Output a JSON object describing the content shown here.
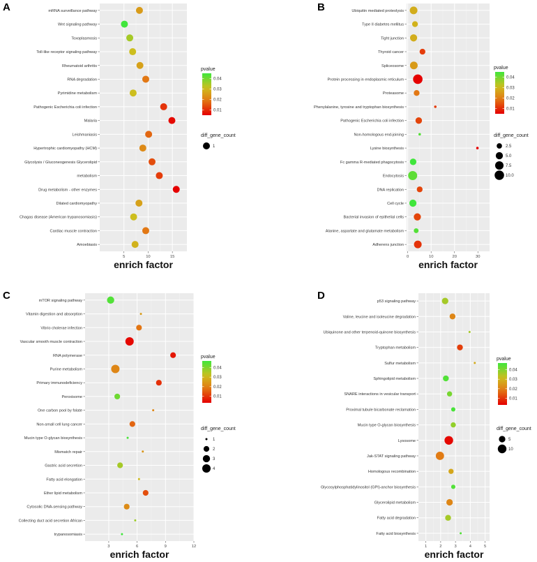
{
  "chart_data": [
    {
      "type": "scatter",
      "panel": "A",
      "xlabel": "enrich factor",
      "xlim": [
        0,
        18
      ],
      "xticks": [
        5,
        10,
        15
      ],
      "x_tick_labels": [
        "5",
        "10",
        "15"
      ],
      "color_legend": {
        "title": "pvalue",
        "ticks": [
          0.04,
          0.03,
          0.02,
          0.01
        ],
        "tick_labels": [
          "0.04",
          "0.03",
          "0.02",
          "0.01"
        ],
        "range": [
          0.005,
          0.045
        ]
      },
      "size_legend": {
        "title": "diff_gene_count",
        "values": [
          1
        ],
        "labels": [
          "1"
        ]
      },
      "points": [
        {
          "term": "mRNA surveillance pathway",
          "x": 8.2,
          "pvalue": 0.025,
          "count": 1
        },
        {
          "term": "Wnt signaling pathway",
          "x": 5.1,
          "pvalue": 0.045,
          "count": 1
        },
        {
          "term": "Toxoplasmosis",
          "x": 6.2,
          "pvalue": 0.035,
          "count": 1
        },
        {
          "term": "Toll-like receptor signaling pathway",
          "x": 6.8,
          "pvalue": 0.031,
          "count": 1
        },
        {
          "term": "Rheumatoid arthritis",
          "x": 8.3,
          "pvalue": 0.026,
          "count": 1
        },
        {
          "term": "RNA degradation",
          "x": 9.5,
          "pvalue": 0.019,
          "count": 1
        },
        {
          "term": "Pyrimidine metabolism",
          "x": 6.9,
          "pvalue": 0.031,
          "count": 1
        },
        {
          "term": "Pathogenic Escherichia coli infection",
          "x": 13.2,
          "pvalue": 0.011,
          "count": 1
        },
        {
          "term": "Malaria",
          "x": 14.9,
          "pvalue": 0.006,
          "count": 1
        },
        {
          "term": "Leishmaniasis",
          "x": 10.1,
          "pvalue": 0.017,
          "count": 1
        },
        {
          "term": "Hypertrophic cardiomyopathy (HCM)",
          "x": 8.9,
          "pvalue": 0.022,
          "count": 1
        },
        {
          "term": "Glycolysis / Gluconeogenesis Glycerolipid",
          "x": 10.8,
          "pvalue": 0.014,
          "count": 1
        },
        {
          "term": "metabolism",
          "x": 12.3,
          "pvalue": 0.012,
          "count": 1
        },
        {
          "term": "Drug metabolism - other enzymes",
          "x": 15.8,
          "pvalue": 0.005,
          "count": 1
        },
        {
          "term": "Dilated cardiomyopathy",
          "x": 8.1,
          "pvalue": 0.026,
          "count": 1
        },
        {
          "term": "Chagas disease (American trypanosomiasis)",
          "x": 7.0,
          "pvalue": 0.031,
          "count": 1
        },
        {
          "term": "Cardiac muscle contraction",
          "x": 9.5,
          "pvalue": 0.019,
          "count": 1
        },
        {
          "term": "Amoebiasis",
          "x": 7.3,
          "pvalue": 0.029,
          "count": 1
        }
      ]
    },
    {
      "type": "scatter",
      "panel": "B",
      "xlabel": "enrich factor",
      "xlim": [
        -0.5,
        35
      ],
      "xticks": [
        0,
        10,
        20,
        30
      ],
      "x_tick_labels": [
        "0",
        "10",
        "20",
        "30"
      ],
      "color_legend": {
        "title": "pvalue",
        "ticks": [
          0.04,
          0.03,
          0.02,
          0.01
        ],
        "tick_labels": [
          "0.04",
          "0.03",
          "0.02",
          "0.01"
        ],
        "range": [
          0.005,
          0.045
        ]
      },
      "size_legend": {
        "title": "diff_gene_count",
        "values": [
          2.5,
          5.0,
          7.5,
          10.0
        ],
        "labels": [
          "2.5",
          "5.0",
          "7.5",
          "10.0"
        ]
      },
      "points": [
        {
          "term": "Ubiquitin mediated proteolysis",
          "x": 2.5,
          "pvalue": 0.028,
          "count": 6
        },
        {
          "term": "Type II diabetes mellitus",
          "x": 3.1,
          "pvalue": 0.029,
          "count": 3
        },
        {
          "term": "Tight junction",
          "x": 2.5,
          "pvalue": 0.028,
          "count": 5
        },
        {
          "term": "Thyroid cancer",
          "x": 6.3,
          "pvalue": 0.012,
          "count": 3
        },
        {
          "term": "Spliceosome",
          "x": 2.6,
          "pvalue": 0.025,
          "count": 6
        },
        {
          "term": "Protein processing in endoplasmic reticulum",
          "x": 4.3,
          "pvalue": 0.003,
          "count": 10
        },
        {
          "term": "Proteasome",
          "x": 3.8,
          "pvalue": 0.019,
          "count": 3
        },
        {
          "term": "Phenylalanine, tyrosine and tryptophan biosynthesis",
          "x": 11.8,
          "pvalue": 0.012,
          "count": 1
        },
        {
          "term": "Pathogenic Escherichia coli infection",
          "x": 4.7,
          "pvalue": 0.013,
          "count": 4
        },
        {
          "term": "Non-homologous end-joining",
          "x": 5.1,
          "pvalue": 0.043,
          "count": 1
        },
        {
          "term": "Lysine biosynthesis",
          "x": 29.8,
          "pvalue": 0.005,
          "count": 1
        },
        {
          "term": "Fc gamma R-mediated phagocytosis",
          "x": 2.3,
          "pvalue": 0.045,
          "count": 4
        },
        {
          "term": "Endocytosis",
          "x": 2.1,
          "pvalue": 0.042,
          "count": 9
        },
        {
          "term": "DNA replication",
          "x": 5.1,
          "pvalue": 0.013,
          "count": 3
        },
        {
          "term": "Cell cycle",
          "x": 2.2,
          "pvalue": 0.045,
          "count": 5
        },
        {
          "term": "Bacterial invasion of epithelial cells",
          "x": 4.1,
          "pvalue": 0.013,
          "count": 5
        },
        {
          "term": "Alanine, aspartate and glutamate metabolism",
          "x": 3.6,
          "pvalue": 0.043,
          "count": 2
        },
        {
          "term": "Adherens junction",
          "x": 4.3,
          "pvalue": 0.011,
          "count": 6
        }
      ]
    },
    {
      "type": "scatter",
      "panel": "C",
      "xlabel": "enrich factor",
      "xlim": [
        0.5,
        12
      ],
      "xticks": [
        3,
        6,
        9,
        12
      ],
      "x_tick_labels": [
        "3",
        "6",
        "9",
        "12"
      ],
      "color_legend": {
        "title": "pvalue",
        "ticks": [
          0.04,
          0.03,
          0.02,
          0.01
        ],
        "tick_labels": [
          "0.04",
          "0.03",
          "0.02",
          "0.01"
        ],
        "range": [
          0.003,
          0.047
        ]
      },
      "size_legend": {
        "title": "diff_gene_count",
        "values": [
          1,
          2,
          3,
          4
        ],
        "labels": [
          "1",
          "2",
          "3",
          "4"
        ]
      },
      "points": [
        {
          "term": "mTOR signaling pathway",
          "x": 3.2,
          "pvalue": 0.045,
          "count": 3
        },
        {
          "term": "Vitamin digestion and absorption",
          "x": 6.4,
          "pvalue": 0.025,
          "count": 1
        },
        {
          "term": "Vibrio cholerae infection",
          "x": 6.2,
          "pvalue": 0.018,
          "count": 2
        },
        {
          "term": "Vascular smooth muscle contraction",
          "x": 5.2,
          "pvalue": 0.004,
          "count": 4
        },
        {
          "term": "RNA polymerase",
          "x": 9.8,
          "pvalue": 0.006,
          "count": 2
        },
        {
          "term": "Purine metabolism",
          "x": 3.7,
          "pvalue": 0.021,
          "count": 4
        },
        {
          "term": "Primary immunodeficiency",
          "x": 8.3,
          "pvalue": 0.009,
          "count": 2
        },
        {
          "term": "Peroxisome",
          "x": 3.9,
          "pvalue": 0.042,
          "count": 2
        },
        {
          "term": "One carbon pool by folate",
          "x": 7.7,
          "pvalue": 0.021,
          "count": 1
        },
        {
          "term": "Non-small cell lung cancer",
          "x": 5.5,
          "pvalue": 0.016,
          "count": 2
        },
        {
          "term": "Mucin type O-glycan biosynthesis",
          "x": 5.0,
          "pvalue": 0.046,
          "count": 1
        },
        {
          "term": "Mismatch repair",
          "x": 6.6,
          "pvalue": 0.024,
          "count": 1
        },
        {
          "term": "Gastric acid secretion",
          "x": 4.2,
          "pvalue": 0.036,
          "count": 2
        },
        {
          "term": "Fatty acid elongation",
          "x": 6.2,
          "pvalue": 0.031,
          "count": 1
        },
        {
          "term": "Ether lipid metabolism",
          "x": 6.9,
          "pvalue": 0.013,
          "count": 2
        },
        {
          "term": "Cytosolic DNA-sensing pathway",
          "x": 4.9,
          "pvalue": 0.022,
          "count": 2
        },
        {
          "term": "Collecting duct acid secretion African",
          "x": 5.8,
          "pvalue": 0.037,
          "count": 1
        },
        {
          "term": "trypanosomiasis",
          "x": 4.4,
          "pvalue": 0.047,
          "count": 1
        }
      ]
    },
    {
      "type": "scatter",
      "panel": "D",
      "xlabel": "enrich factor",
      "xlim": [
        0.5,
        5.3
      ],
      "xticks": [
        1,
        2,
        3,
        4,
        5
      ],
      "x_tick_labels": [
        "1",
        "2",
        "3",
        "4",
        "5"
      ],
      "color_legend": {
        "title": "pvalue",
        "ticks": [
          0.04,
          0.03,
          0.02,
          0.01
        ],
        "tick_labels": [
          "0.04",
          "0.03",
          "0.02",
          "0.01"
        ],
        "range": [
          0.003,
          0.047
        ]
      },
      "size_legend": {
        "title": "diff_gene_count",
        "values": [
          5,
          10
        ],
        "labels": [
          "5",
          "10"
        ]
      },
      "points": [
        {
          "term": "p53 signaling pathway",
          "x": 2.3,
          "pvalue": 0.036,
          "count": 5
        },
        {
          "term": "Valine, leucine and isoleucine degradation",
          "x": 2.8,
          "pvalue": 0.021,
          "count": 4
        },
        {
          "term": "Ubiquinone and other terpenoid-quinone biosynthesis",
          "x": 3.95,
          "pvalue": 0.036,
          "count": 1
        },
        {
          "term": "Tryptophan metabolism",
          "x": 3.3,
          "pvalue": 0.011,
          "count": 4
        },
        {
          "term": "Sulfur metabolism",
          "x": 4.3,
          "pvalue": 0.028,
          "count": 1
        },
        {
          "term": "Sphingolipid metabolism",
          "x": 2.35,
          "pvalue": 0.045,
          "count": 4
        },
        {
          "term": "SNARE interactions in vesicular transport",
          "x": 2.6,
          "pvalue": 0.041,
          "count": 3
        },
        {
          "term": "Proximal tubule bicarbonate reclamation",
          "x": 2.85,
          "pvalue": 0.046,
          "count": 2
        },
        {
          "term": "Mucin type O-glycan biosynthesis",
          "x": 2.85,
          "pvalue": 0.038,
          "count": 3
        },
        {
          "term": "Lysosome",
          "x": 2.55,
          "pvalue": 0.004,
          "count": 10
        },
        {
          "term": "Jak-STAT signaling pathway",
          "x": 1.95,
          "pvalue": 0.019,
          "count": 9
        },
        {
          "term": "Homologous recombination",
          "x": 2.7,
          "pvalue": 0.027,
          "count": 3
        },
        {
          "term": "Glycosylphosphatidylinositol (GPI)-anchor biosynthesis",
          "x": 2.85,
          "pvalue": 0.045,
          "count": 2
        },
        {
          "term": "Glycerolipid metabolism",
          "x": 2.6,
          "pvalue": 0.021,
          "count": 5
        },
        {
          "term": "Fatty acid degradation",
          "x": 2.5,
          "pvalue": 0.036,
          "count": 4
        },
        {
          "term": "Fatty acid biosynthesis",
          "x": 3.35,
          "pvalue": 0.045,
          "count": 1
        }
      ]
    }
  ]
}
